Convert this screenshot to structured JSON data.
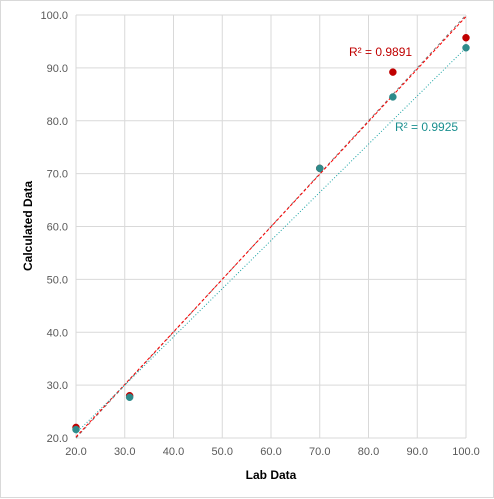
{
  "chart_data": {
    "type": "scatter",
    "title": "",
    "xlabel": "Lab Data",
    "ylabel": "Calculated Data",
    "xlim": [
      20,
      100
    ],
    "ylim": [
      20,
      100
    ],
    "x_ticks": [
      "20.0",
      "30.0",
      "40.0",
      "50.0",
      "60.0",
      "70.0",
      "80.0",
      "90.0",
      "100.0"
    ],
    "y_ticks": [
      "20.0",
      "30.0",
      "40.0",
      "50.0",
      "60.0",
      "70.0",
      "80.0",
      "90.0",
      "100.0"
    ],
    "grid": true,
    "series": [
      {
        "color": "#c00000",
        "points": [
          {
            "x": 20,
            "y": 22.0
          },
          {
            "x": 31,
            "y": 28.0
          },
          {
            "x": 70,
            "y": 71.0
          },
          {
            "x": 85,
            "y": 89.2
          },
          {
            "x": 100,
            "y": 95.7
          }
        ],
        "trendline": {
          "x": [
            20,
            100
          ],
          "y": [
            20.2,
            99.7
          ],
          "color": "#ff0000"
        },
        "annotation": {
          "label": "R² = 0.9891",
          "color": "#c00000"
        }
      },
      {
        "color": "#2e8b8b",
        "points": [
          {
            "x": 20,
            "y": 21.6
          },
          {
            "x": 31,
            "y": 27.7
          },
          {
            "x": 70,
            "y": 71.0
          },
          {
            "x": 85,
            "y": 84.5
          },
          {
            "x": 100,
            "y": 93.8
          }
        ],
        "trendline": {
          "x": [
            20,
            100
          ],
          "y": [
            20.9,
            93.8
          ],
          "color": "#1aa3a3"
        },
        "annotation": {
          "label": "R² = 0.9925",
          "color": "#1a8f8f"
        }
      }
    ],
    "diagonal": {
      "x": [
        20,
        100
      ],
      "y": [
        20,
        100
      ],
      "color": "#7f7f7f"
    }
  }
}
